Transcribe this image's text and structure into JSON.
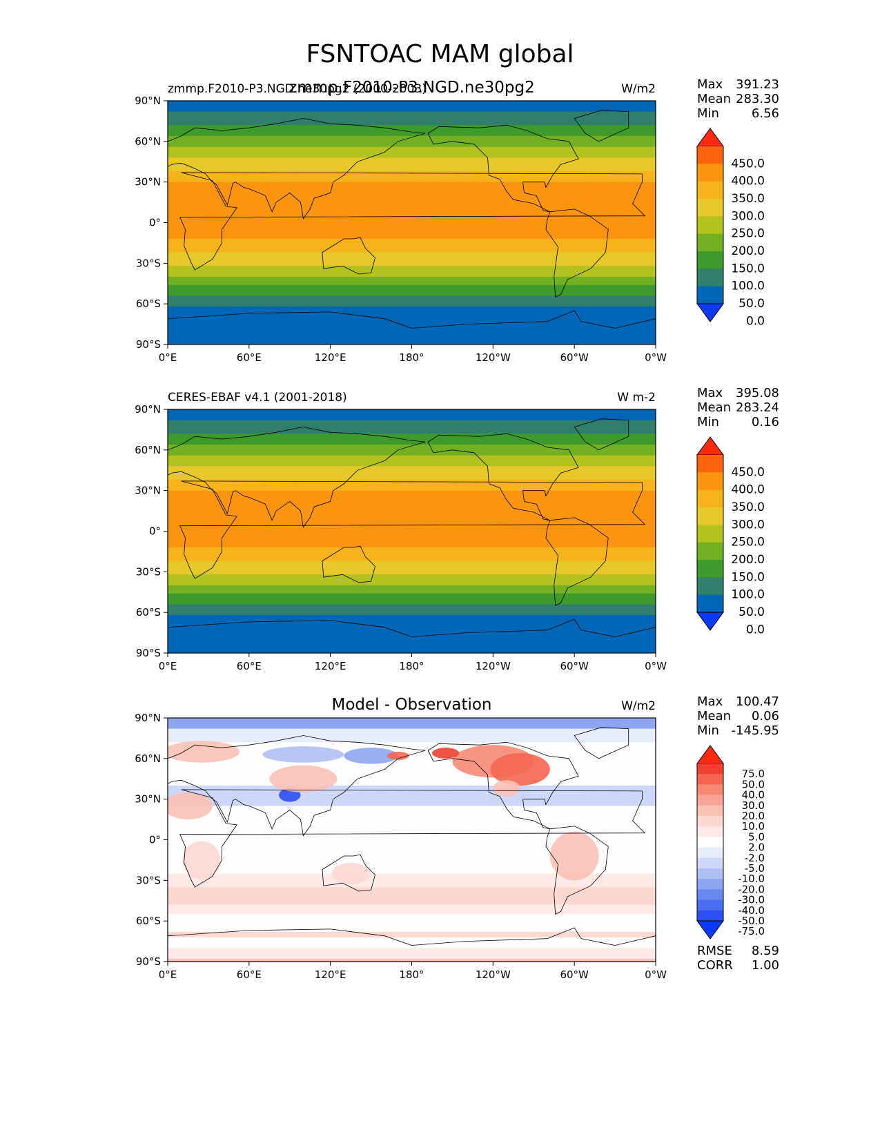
{
  "figure_title": "FSNTOAC MAM global",
  "lat_labels": [
    "90°N",
    "60°N",
    "30°N",
    "0°",
    "30°S",
    "60°S",
    "90°S"
  ],
  "lon_labels": [
    "0°E",
    "60°E",
    "120°E",
    "180°",
    "120°W",
    "60°W",
    "0°W"
  ],
  "stat_labels": {
    "max": "Max",
    "mean": "Mean",
    "min": "Min",
    "rmse": "RMSE",
    "corr": "CORR"
  },
  "panels": [
    {
      "left_title": "zmmp.F2010-P3.NGD.ne30pg2 (2000-2003)",
      "center_title": "zmmp.F2010-P3.NGD.ne30pg2",
      "units": "W/m2",
      "max": "391.23",
      "mean": "283.30",
      "min": "6.56"
    },
    {
      "left_title": "CERES-EBAF v4.1 (2001-2018)",
      "center_title": "",
      "units": "W m-2",
      "max": "395.08",
      "mean": "283.24",
      "min": "0.16"
    },
    {
      "left_title": "",
      "center_title": "Model - Observation",
      "units": "W/m2",
      "max": "100.47",
      "mean": "0.06",
      "min": "-145.95",
      "rmse": "8.59",
      "corr": "1.00"
    }
  ],
  "colorbars": {
    "abs": {
      "labels": [
        "450.0",
        "400.0",
        "350.0",
        "300.0",
        "250.0",
        "200.0",
        "150.0",
        "100.0",
        "50.0",
        "0.0"
      ],
      "colors": [
        "#ff2a10",
        "#fe6410",
        "#fb9410",
        "#f6b31c",
        "#e6c82a",
        "#b4c21f",
        "#74b122",
        "#3f9a2c",
        "#307f6c",
        "#0066b5",
        "#0a3af5"
      ]
    },
    "diff": {
      "labels": [
        "75.0",
        "50.0",
        "40.0",
        "30.0",
        "20.0",
        "10.0",
        "5.0",
        "2.0",
        "-2.0",
        "-5.0",
        "-10.0",
        "-20.0",
        "-30.0",
        "-40.0",
        "-50.0",
        "-75.0"
      ],
      "colors": [
        "#ff2a10",
        "#f04030",
        "#f46650",
        "#f78874",
        "#f9a496",
        "#fbc0b4",
        "#fdd8d0",
        "#fdeae6",
        "#ffffff",
        "#e6ecfb",
        "#ccd7f9",
        "#afc0f5",
        "#8ea6f2",
        "#6b88ef",
        "#4a6cf0",
        "#2a50f4",
        "#0a3af5"
      ]
    }
  },
  "chart_data": [
    {
      "type": "heatmap",
      "title": "zmmp.F2010-P3.NGD.ne30pg2",
      "subtitle": "zmmp.F2010-P3.NGD.ne30pg2 (2000-2003)",
      "units": "W/m2",
      "x_range": [
        0,
        360
      ],
      "y_range": [
        -90,
        90
      ],
      "x_ticks": [
        "0°E",
        "60°E",
        "120°E",
        "180°",
        "120°W",
        "60°W",
        "0°W"
      ],
      "y_ticks": [
        "90°N",
        "60°N",
        "30°N",
        "0°",
        "30°S",
        "60°S",
        "90°S"
      ],
      "levels": [
        0,
        50,
        100,
        150,
        200,
        250,
        300,
        350,
        400,
        450
      ],
      "stats": {
        "max": 391.23,
        "mean": 283.3,
        "min": 6.56
      },
      "zonal_profile": {
        "lat": [
          90,
          80,
          70,
          60,
          50,
          40,
          30,
          20,
          10,
          0,
          -10,
          -20,
          -30,
          -40,
          -50,
          -60,
          -70,
          -80,
          -90
        ],
        "value": [
          110,
          130,
          170,
          210,
          270,
          300,
          340,
          360,
          370,
          370,
          350,
          320,
          280,
          240,
          190,
          150,
          60,
          20,
          10
        ]
      }
    },
    {
      "type": "heatmap",
      "title": "CERES-EBAF v4.1 (2001-2018)",
      "units": "W m-2",
      "x_range": [
        0,
        360
      ],
      "y_range": [
        -90,
        90
      ],
      "x_ticks": [
        "0°E",
        "60°E",
        "120°E",
        "180°",
        "120°W",
        "60°W",
        "0°W"
      ],
      "y_ticks": [
        "90°N",
        "60°N",
        "30°N",
        "0°",
        "30°S",
        "60°S",
        "90°S"
      ],
      "levels": [
        0,
        50,
        100,
        150,
        200,
        250,
        300,
        350,
        400,
        450
      ],
      "stats": {
        "max": 395.08,
        "mean": 283.24,
        "min": 0.16
      },
      "zonal_profile": {
        "lat": [
          90,
          80,
          70,
          60,
          50,
          40,
          30,
          20,
          10,
          0,
          -10,
          -20,
          -30,
          -40,
          -50,
          -60,
          -70,
          -80,
          -90
        ],
        "value": [
          110,
          130,
          170,
          210,
          270,
          300,
          340,
          360,
          370,
          370,
          350,
          320,
          280,
          240,
          190,
          150,
          60,
          20,
          10
        ]
      }
    },
    {
      "type": "heatmap",
      "title": "Model - Observation",
      "units": "W/m2",
      "x_range": [
        0,
        360
      ],
      "y_range": [
        -90,
        90
      ],
      "x_ticks": [
        "0°E",
        "60°E",
        "120°E",
        "180°",
        "120°W",
        "60°W",
        "0°W"
      ],
      "y_ticks": [
        "90°N",
        "60°N",
        "30°N",
        "0°",
        "30°S",
        "60°S",
        "90°S"
      ],
      "levels": [
        -75,
        -50,
        -40,
        -30,
        -20,
        -10,
        -5,
        -2,
        2,
        5,
        10,
        20,
        30,
        40,
        50,
        75
      ],
      "stats": {
        "max": 100.47,
        "mean": 0.06,
        "min": -145.95,
        "rmse": 8.59,
        "corr": 1.0
      }
    }
  ]
}
